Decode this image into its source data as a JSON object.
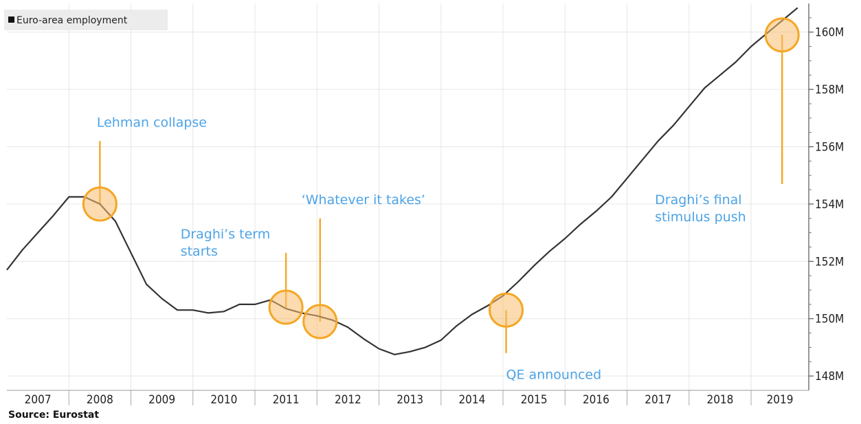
{
  "source_label": "Source: Eurostat",
  "chart_data": {
    "type": "line",
    "legend": {
      "label": "Euro-area employment",
      "placement": "top-left"
    },
    "series": [
      {
        "name": "Euro-area employment",
        "color": "#333333",
        "x": [
          2006.5,
          2006.75,
          2007,
          2007.25,
          2007.5,
          2007.75,
          2008,
          2008.25,
          2008.5,
          2008.75,
          2009,
          2009.25,
          2009.5,
          2009.75,
          2010,
          2010.25,
          2010.5,
          2010.75,
          2011,
          2011.25,
          2011.5,
          2011.75,
          2012,
          2012.25,
          2012.5,
          2012.75,
          2013,
          2013.25,
          2013.5,
          2013.75,
          2014,
          2014.25,
          2014.5,
          2014.75,
          2015,
          2015.25,
          2015.5,
          2015.75,
          2016,
          2016.25,
          2016.5,
          2016.75,
          2017,
          2017.25,
          2017.5,
          2017.75,
          2018,
          2018.25,
          2018.5,
          2018.75,
          2019,
          2019.25
        ],
        "values": [
          151.7,
          152.4,
          153.0,
          153.6,
          154.25,
          154.25,
          154.0,
          153.4,
          152.3,
          151.2,
          150.7,
          150.3,
          150.3,
          150.2,
          150.25,
          150.5,
          150.5,
          150.65,
          150.35,
          150.2,
          150.1,
          149.95,
          149.7,
          149.3,
          148.95,
          148.75,
          148.85,
          149.0,
          149.25,
          149.75,
          150.15,
          150.45,
          150.8,
          151.3,
          151.85,
          152.35,
          152.8,
          153.3,
          153.75,
          154.25,
          154.9,
          155.55,
          156.2,
          156.75,
          157.4,
          158.05,
          158.5,
          158.95,
          159.5,
          159.95,
          160.4,
          160.85
        ]
      }
    ],
    "x_tick_labels": [
      "2007",
      "2008",
      "2009",
      "2010",
      "2011",
      "2012",
      "2013",
      "2014",
      "2015",
      "2016",
      "2017",
      "2018",
      "2019"
    ],
    "y_tick_values": [
      148,
      150,
      152,
      154,
      156,
      158,
      160
    ],
    "y_tick_labels": [
      "148M",
      "150M",
      "152M",
      "154M",
      "156M",
      "158M",
      "160M"
    ],
    "ylim": [
      147.5,
      161
    ],
    "xlim": [
      2006.5,
      2019.43
    ],
    "grid": true,
    "annotations": [
      {
        "text_lines": [
          "Lehman collapse"
        ],
        "x": 2008.0,
        "y": 154.0,
        "stem_to": 156.2,
        "label_x": 2007.95,
        "label_y": 156.7
      },
      {
        "text_lines": [
          "Draghi’s term",
          "starts"
        ],
        "x": 2011.0,
        "y": 150.4,
        "stem_to": 152.3,
        "label_x": 2009.3,
        "label_y": 152.8
      },
      {
        "text_lines": [
          "‘Whatever it takes’"
        ],
        "x": 2011.55,
        "y": 149.9,
        "stem_to": 153.5,
        "label_x": 2011.25,
        "label_y": 154.0
      },
      {
        "text_lines": [
          "QE announced"
        ],
        "x": 2014.55,
        "y": 150.3,
        "stem_to": 148.8,
        "label_x": 2014.55,
        "label_y": 147.9
      },
      {
        "text_lines": [
          "Draghi’s final",
          "stimulus push"
        ],
        "x": 2019.0,
        "y": 159.9,
        "stem_to": 154.7,
        "label_x": 2016.95,
        "label_y": 154.0
      }
    ],
    "highlight_color": "#f5a623"
  }
}
